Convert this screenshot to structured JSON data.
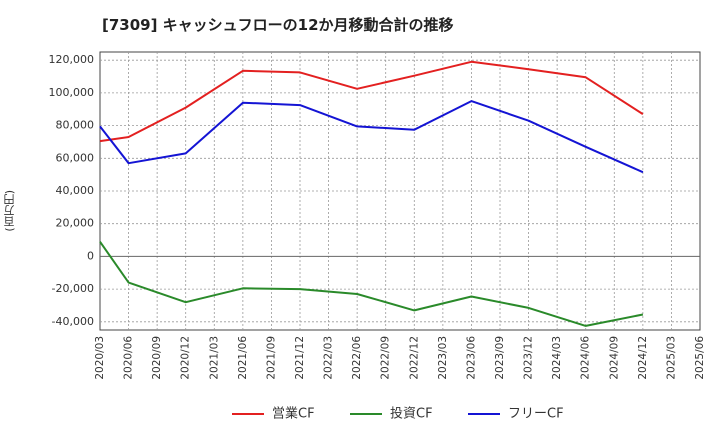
{
  "chart_data": {
    "type": "line",
    "title": "[7309]  キャッシュフローの12か月移動合計の推移",
    "ylabel": "(百万円)",
    "xlabel": "",
    "ylim": [
      -45000,
      125000
    ],
    "yticks": [
      120000,
      100000,
      80000,
      60000,
      40000,
      20000,
      0,
      -20000,
      -40000
    ],
    "ytick_labels": [
      "120,000",
      "100,000",
      "80,000",
      "60,000",
      "40,000",
      "20,000",
      "0",
      "-20,000",
      "-40,000"
    ],
    "x_categories": [
      "2020/03",
      "2020/06",
      "2020/09",
      "2020/12",
      "2021/03",
      "2021/06",
      "2021/09",
      "2021/12",
      "2022/03",
      "2022/06",
      "2022/09",
      "2022/12",
      "2023/03",
      "2023/06",
      "2023/09",
      "2023/12",
      "2024/03",
      "2024/06",
      "2024/09",
      "2024/12",
      "2025/03",
      "2025/06"
    ],
    "grid": true,
    "legend_position": "bottom",
    "series": [
      {
        "name": "営業CF",
        "color": "#e32020",
        "points": [
          {
            "x": "2020/03",
            "y": 70500
          },
          {
            "x": "2020/06",
            "y": 73000
          },
          {
            "x": "2020/12",
            "y": 91000
          },
          {
            "x": "2021/06",
            "y": 113500
          },
          {
            "x": "2021/12",
            "y": 112500
          },
          {
            "x": "2022/06",
            "y": 102500
          },
          {
            "x": "2022/12",
            "y": 110500
          },
          {
            "x": "2023/06",
            "y": 119000
          },
          {
            "x": "2023/12",
            "y": 114500
          },
          {
            "x": "2024/06",
            "y": 109500
          },
          {
            "x": "2024/12",
            "y": 87000
          }
        ]
      },
      {
        "name": "投資CF",
        "color": "#2a8a2a",
        "points": [
          {
            "x": "2020/03",
            "y": 9000
          },
          {
            "x": "2020/06",
            "y": -16000
          },
          {
            "x": "2020/12",
            "y": -28000
          },
          {
            "x": "2021/06",
            "y": -19500
          },
          {
            "x": "2021/12",
            "y": -20000
          },
          {
            "x": "2022/06",
            "y": -23000
          },
          {
            "x": "2022/12",
            "y": -33000
          },
          {
            "x": "2023/06",
            "y": -24500
          },
          {
            "x": "2023/12",
            "y": -31500
          },
          {
            "x": "2024/06",
            "y": -42500
          },
          {
            "x": "2024/12",
            "y": -35500
          }
        ]
      },
      {
        "name": "フリーCF",
        "color": "#1414d4",
        "points": [
          {
            "x": "2020/03",
            "y": 79500
          },
          {
            "x": "2020/06",
            "y": 57000
          },
          {
            "x": "2020/12",
            "y": 63000
          },
          {
            "x": "2021/06",
            "y": 94000
          },
          {
            "x": "2021/12",
            "y": 92500
          },
          {
            "x": "2022/06",
            "y": 79500
          },
          {
            "x": "2022/12",
            "y": 77500
          },
          {
            "x": "2023/06",
            "y": 95000
          },
          {
            "x": "2023/12",
            "y": 83000
          },
          {
            "x": "2024/06",
            "y": 67000
          },
          {
            "x": "2024/12",
            "y": 51500
          }
        ]
      }
    ]
  }
}
